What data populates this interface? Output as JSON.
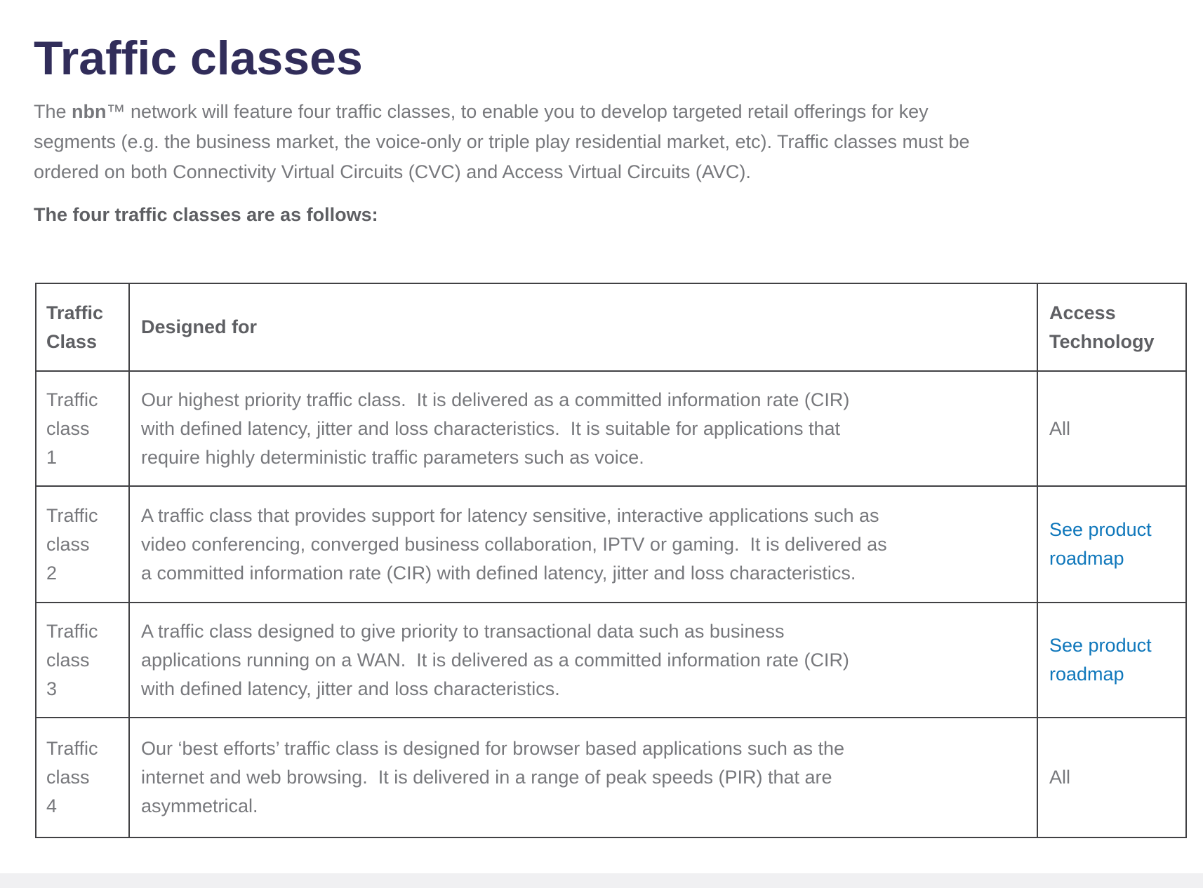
{
  "page": {
    "title": "Traffic classes",
    "intro": {
      "pre": "The ",
      "brand": "nbn",
      "trademark": "™",
      "rest": " network will feature four traffic classes, to enable you to develop targeted retail offerings for key\nsegments (e.g. the business market, the voice-only or triple play residential market, etc). Traffic classes must be\nordered on both Connectivity Virtual Circuits (CVC) and Access Virtual Circuits (AVC).",
      "full_text": "The nbn™ network will feature four traffic classes, to enable you to develop targeted retail offerings for key segments (e.g. the business market, the voice-only or triple play residential market, etc). Traffic classes must be ordered on both Connectivity Virtual Circuits (CVC) and Access Virtual Circuits (AVC)."
    },
    "subheading": "The four traffic classes are as follows:"
  },
  "table": {
    "headers": [
      "Traffic Class",
      "Designed for",
      "Access Technology"
    ],
    "rows": [
      {
        "traffic_class": "Traffic class 1",
        "designed_for": "Our highest priority traffic class.  It is delivered as a committed information rate (CIR)\nwith defined latency, jitter and loss characteristics.  It is suitable for applications that\nrequire highly deterministic traffic parameters such as voice.",
        "access_technology": "All",
        "access_technology_is_link": false
      },
      {
        "traffic_class": "Traffic class 2",
        "designed_for": "A traffic class that provides support for latency sensitive, interactive applications such as\nvideo conferencing, converged business collaboration, IPTV or gaming.  It is delivered as\na committed information rate (CIR) with defined latency, jitter and loss characteristics.",
        "access_technology": "See product roadmap",
        "access_technology_is_link": true
      },
      {
        "traffic_class": "Traffic class 3",
        "designed_for": "A traffic class designed to give priority to transactional data such as business\napplications running on a WAN.  It is delivered as a committed information rate (CIR)\nwith defined latency, jitter and loss characteristics.",
        "access_technology": "See product roadmap",
        "access_technology_is_link": true
      },
      {
        "traffic_class": "Traffic class 4",
        "designed_for": "Our ‘best efforts’ traffic class is designed for browser based applications such as the\ninternet and web browsing.  It is delivered in a range of peak speeds (PIR) that are\nasymmetrical.",
        "access_technology": "All",
        "access_technology_is_link": false
      }
    ]
  },
  "colors": {
    "heading": "#312d5a",
    "body_text": "#77787c",
    "header_text": "#5e5f63",
    "table_border": "#414144",
    "link": "#0f77bb",
    "footer_strip": "#f0f0f2"
  }
}
